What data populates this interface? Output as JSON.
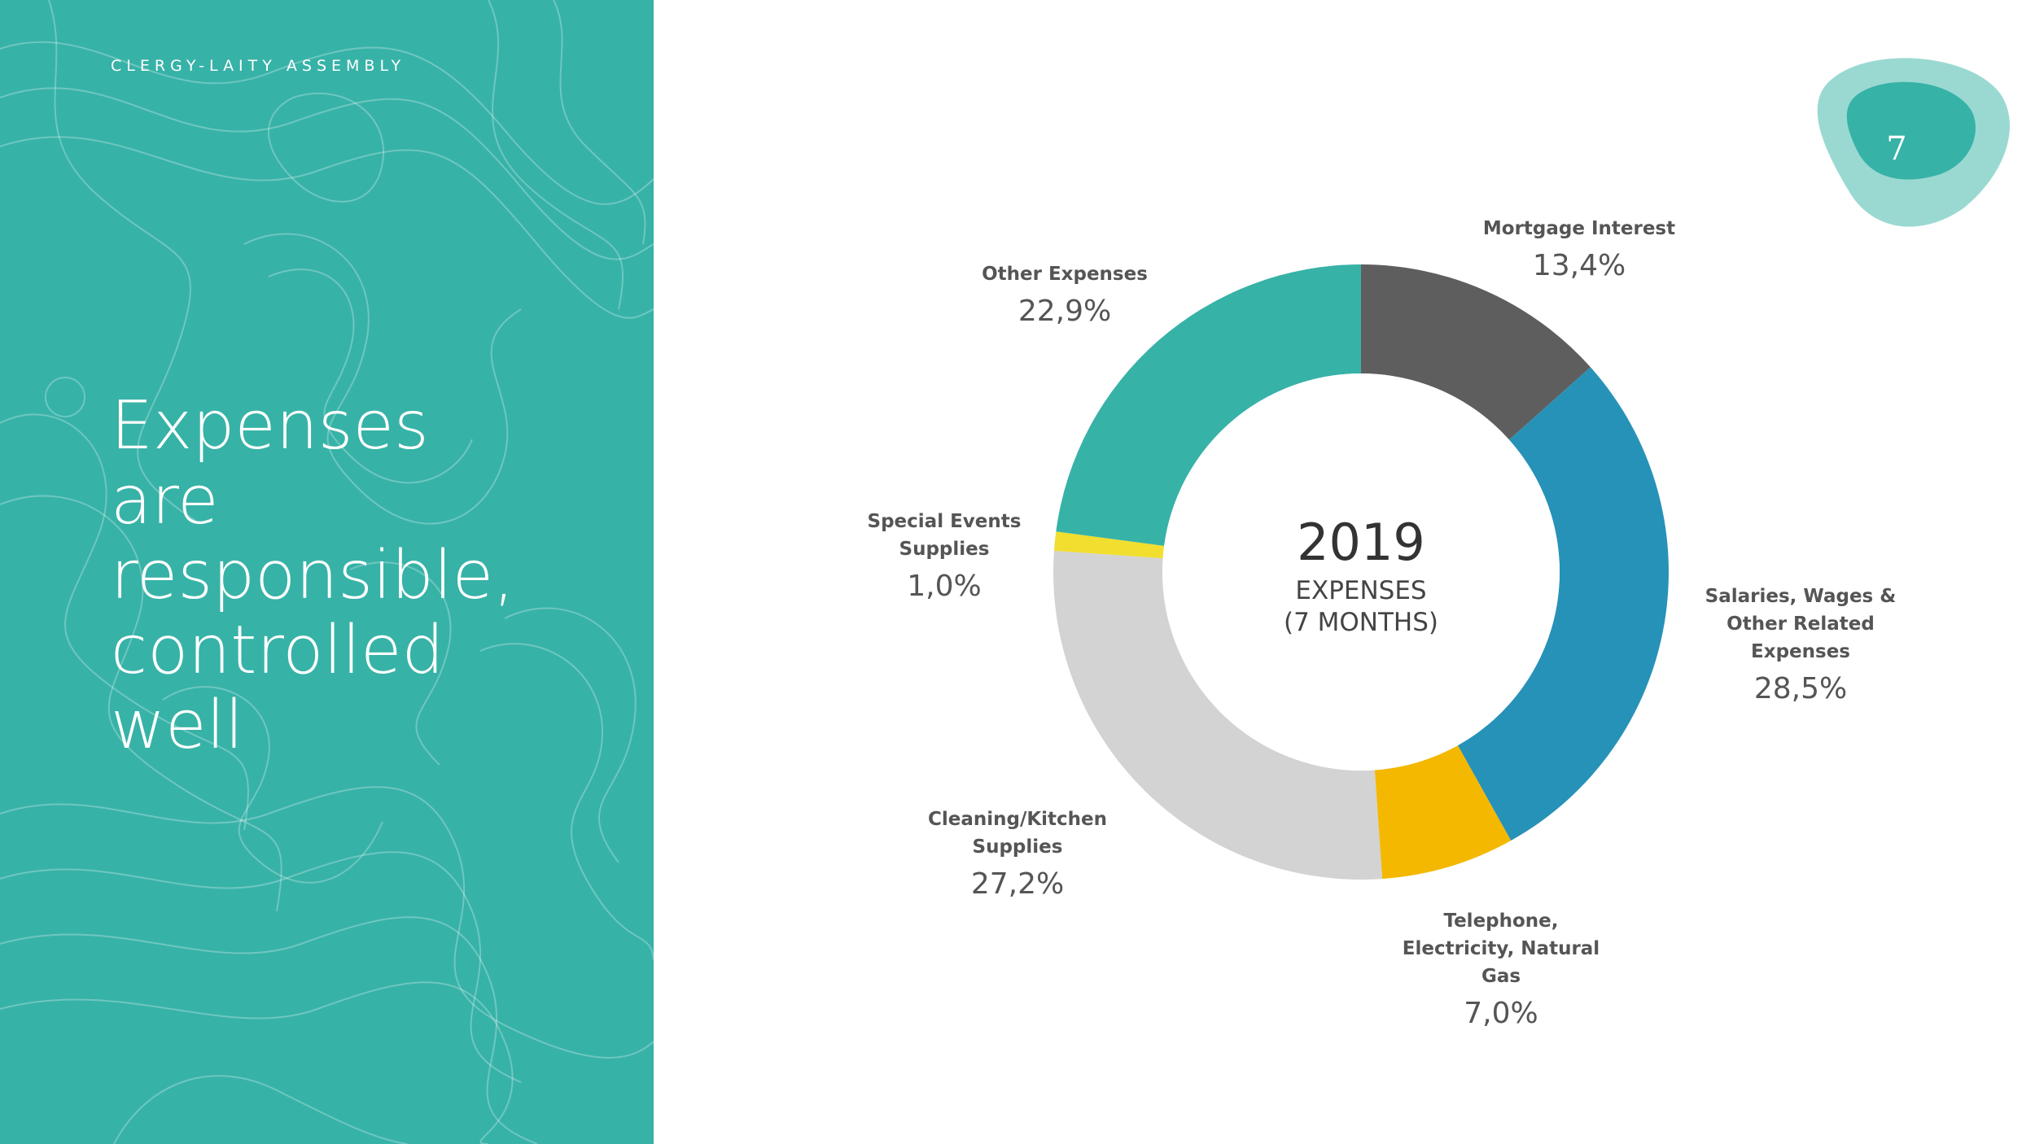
{
  "header": {
    "organization": "CLERGY-LAITY ASSEMBLY"
  },
  "headline": [
    "Expenses",
    "are",
    "responsible,",
    "controlled",
    "well"
  ],
  "page_number": "7",
  "colors": {
    "teal": "#37b2a7",
    "badge_outer": "#9ad9d2"
  },
  "chart_data": {
    "type": "pie",
    "variant": "donut",
    "center_title": "2019",
    "center_subtitle": [
      "EXPENSES",
      "(7 MONTHS)"
    ],
    "slices": [
      {
        "name": [
          "Mortgage Interest"
        ],
        "value": 13.4,
        "label": "13,4%",
        "color": "#5e5e5e"
      },
      {
        "name": [
          "Salaries, Wages &",
          "Other Related",
          "Expenses"
        ],
        "value": 28.5,
        "label": "28,5%",
        "color": "#2792b7"
      },
      {
        "name": [
          "Telephone,",
          "Electricity, Natural",
          "Gas"
        ],
        "value": 7.0,
        "label": "7,0%",
        "color": "#f4b800"
      },
      {
        "name": [
          "Cleaning/Kitchen",
          "Supplies"
        ],
        "value": 27.2,
        "label": "27,2%",
        "color": "#d3d3d3"
      },
      {
        "name": [
          "Special Events",
          "Supplies"
        ],
        "value": 1.0,
        "label": "1,0%",
        "color": "#f2de2e"
      },
      {
        "name": [
          "Other Expenses"
        ],
        "value": 22.9,
        "label": "22,9%",
        "color": "#37b2a7"
      }
    ]
  }
}
